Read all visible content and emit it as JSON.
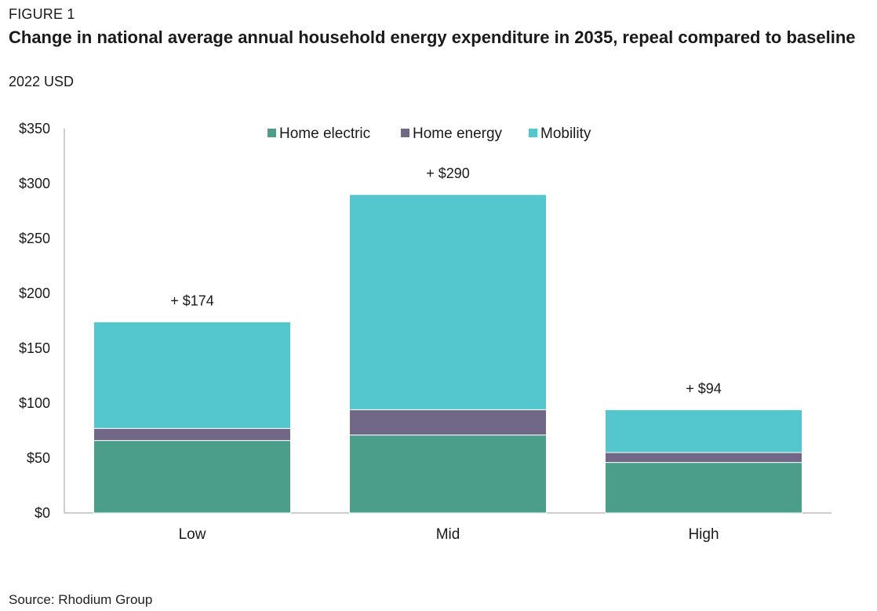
{
  "figure_label": "FIGURE 1",
  "title": "Change in national average annual household energy expenditure in 2035, repeal compared to baseline",
  "subtitle": "2022 USD",
  "source": "Source: Rhodium Group",
  "chart_data": {
    "type": "bar",
    "stacked": true,
    "categories": [
      "Low",
      "Mid",
      "High"
    ],
    "series": [
      {
        "name": "Home electric",
        "color": "#4a9e8a",
        "values": [
          66,
          71,
          46
        ]
      },
      {
        "name": "Home energy",
        "color": "#716887",
        "values": [
          11,
          23,
          9
        ]
      },
      {
        "name": "Mobility",
        "color": "#53c6ce",
        "values": [
          97,
          196,
          39
        ]
      }
    ],
    "totals": [
      "+ $174",
      "+ $290",
      "+ $94"
    ],
    "ylim": [
      0,
      350
    ],
    "yticks": [
      0,
      50,
      100,
      150,
      200,
      250,
      300,
      350
    ],
    "ytick_labels": [
      "$0",
      "$50",
      "$100",
      "$150",
      "$200",
      "$250",
      "$300",
      "$350"
    ],
    "legend": "top-center",
    "grid": false
  }
}
